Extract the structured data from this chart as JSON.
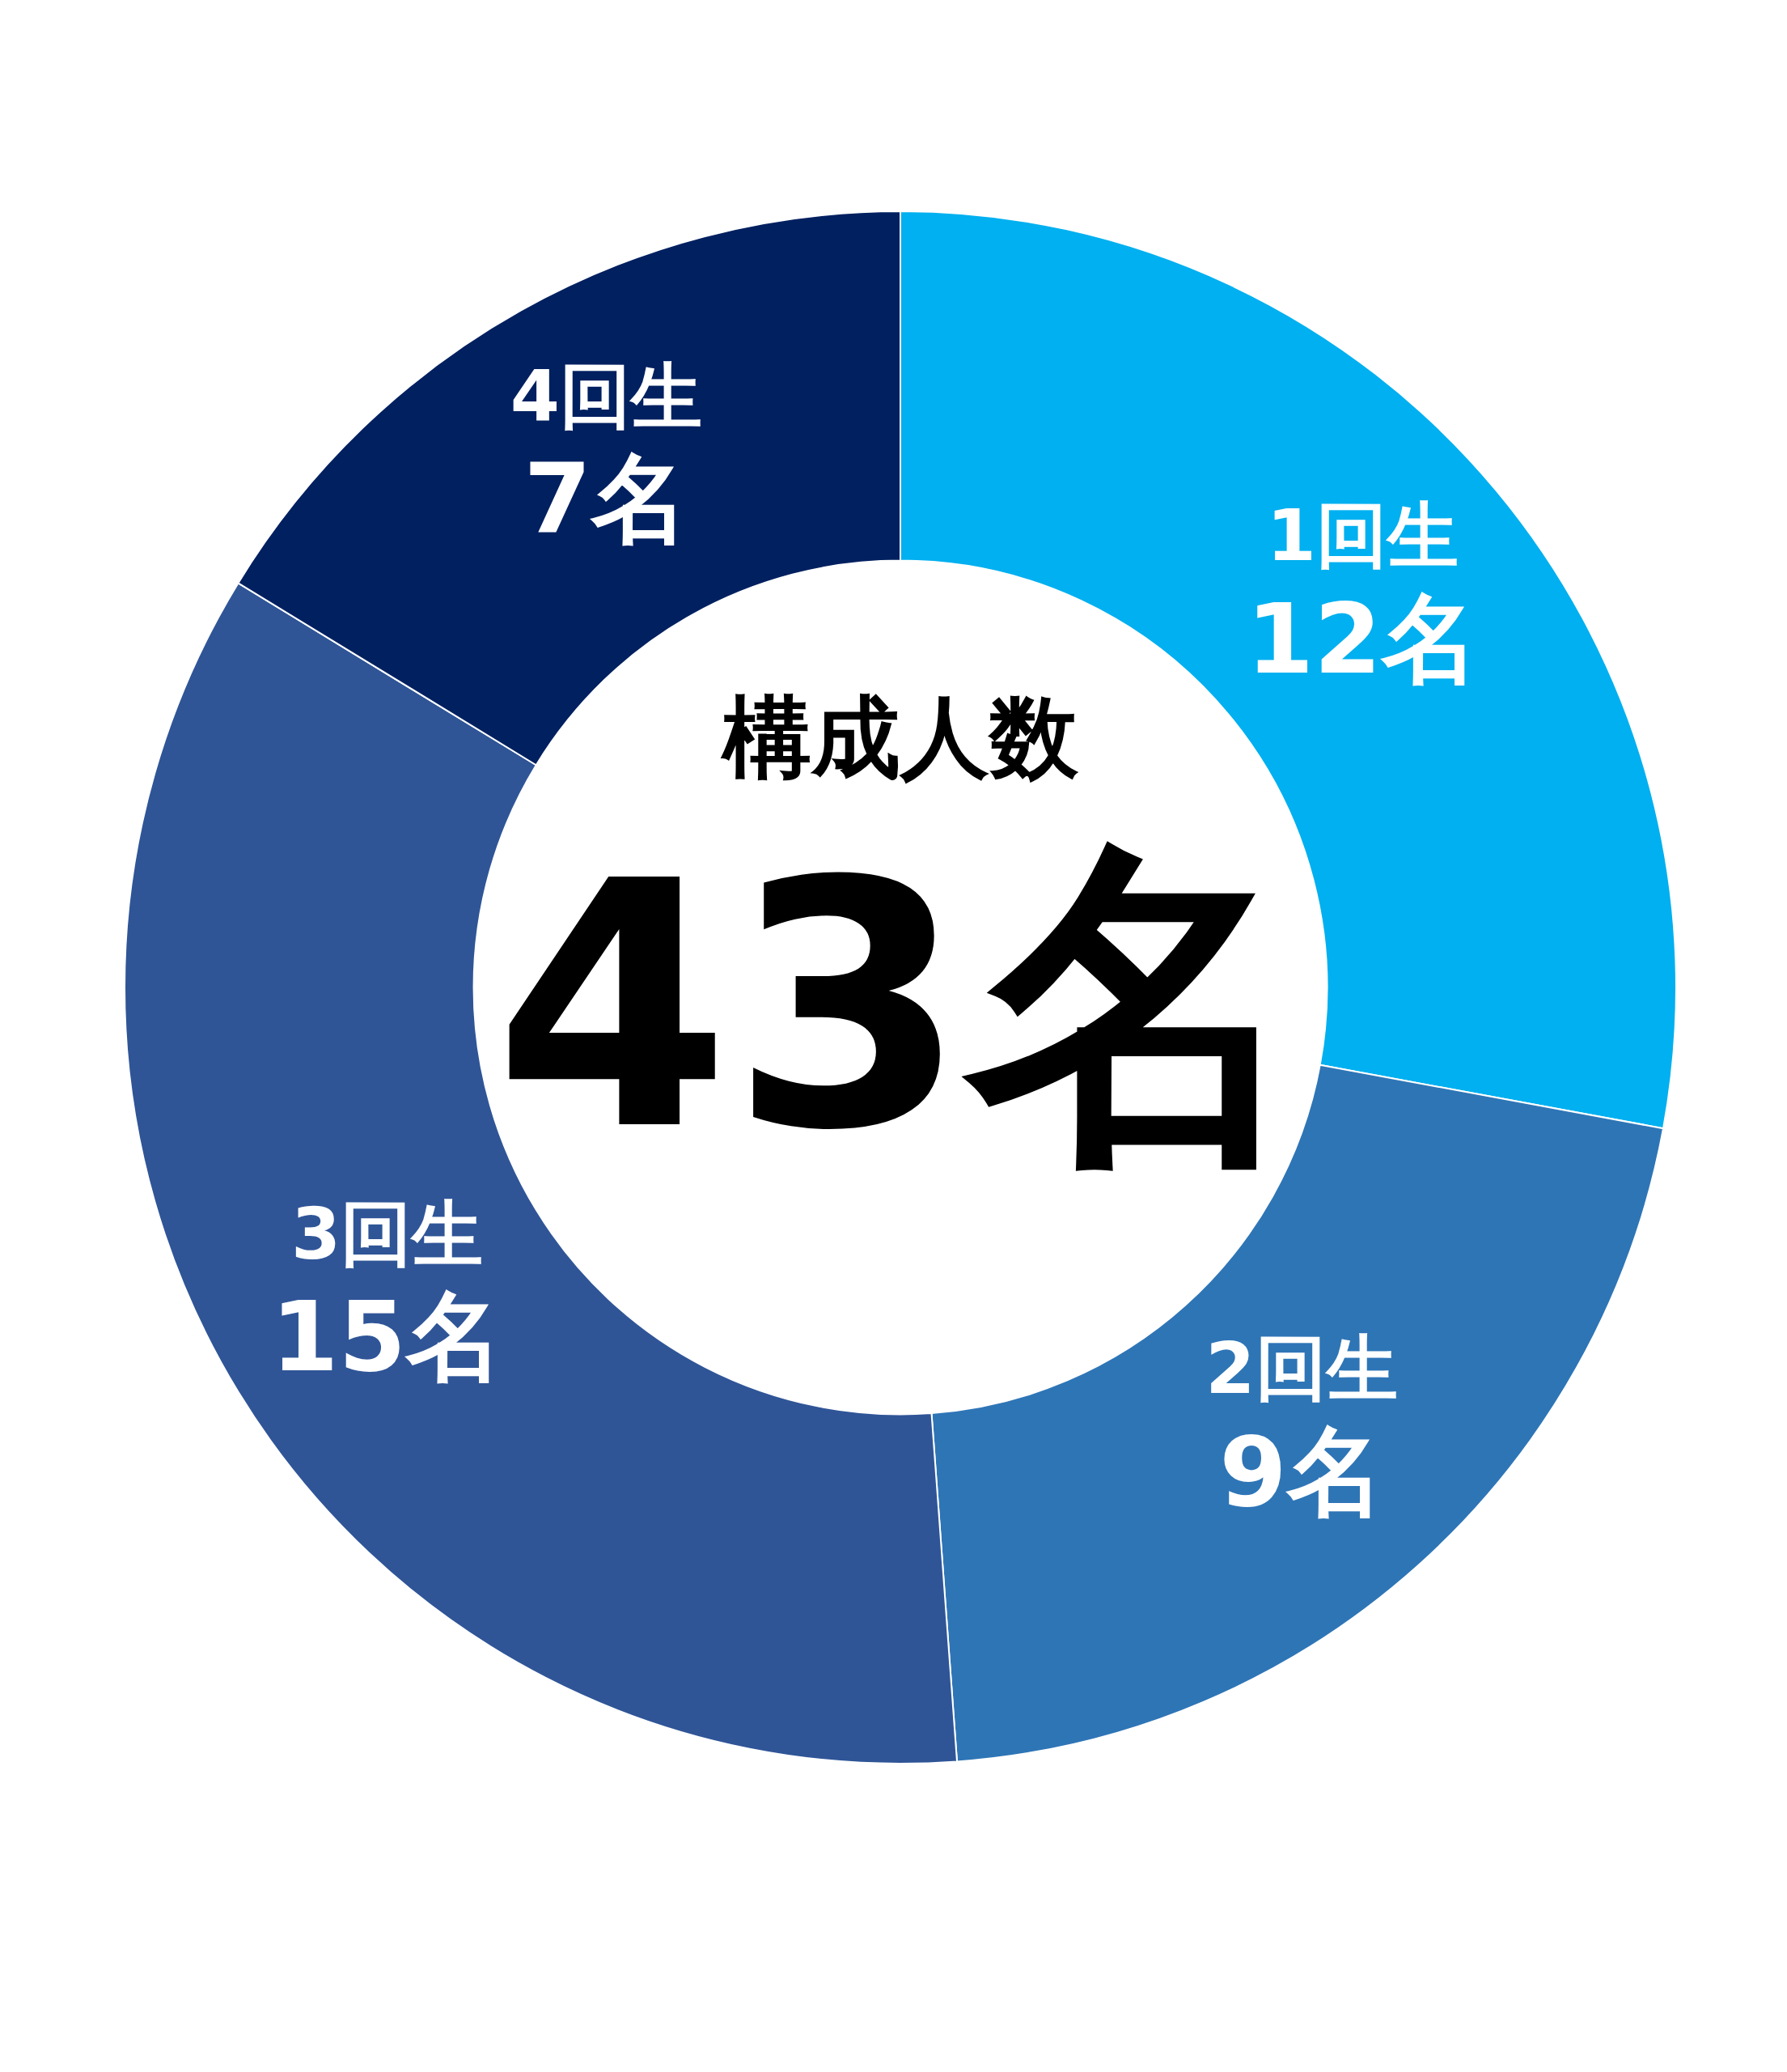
{
  "chart_data": {
    "type": "donut",
    "title": "構成人数",
    "subtitle": "43名",
    "categories": [
      "1回生",
      "2回生",
      "3回生",
      "4回生"
    ],
    "values": [
      12,
      9,
      15,
      7
    ],
    "value_labels": [
      "12名",
      "9名",
      "15名",
      "7名"
    ],
    "colors": [
      "#00b0f0",
      "#2e75b6",
      "#2f5597",
      "#002060"
    ],
    "legend": false
  }
}
